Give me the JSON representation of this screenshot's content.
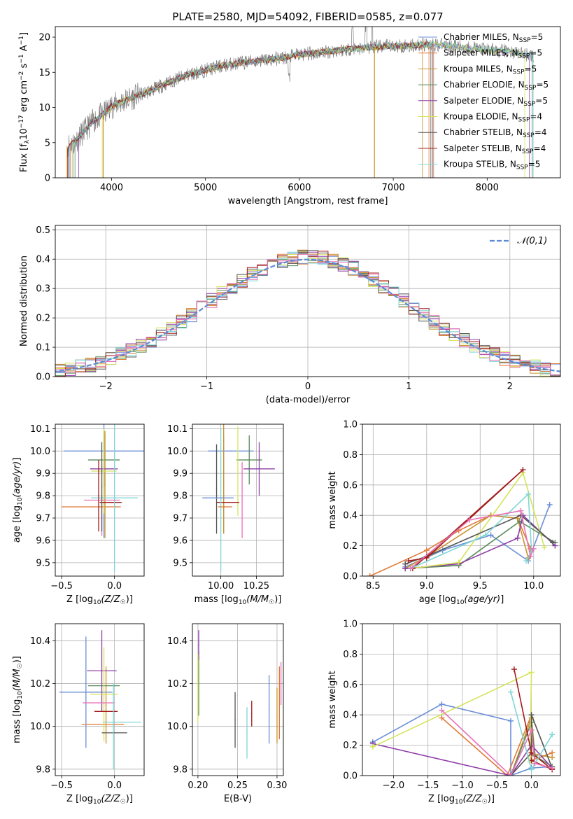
{
  "title": "PLATE=2580, MJD=54092, FIBERID=0585, z=0.077",
  "colors": {
    "Chabrier MILES": "#6a8fd6",
    "Salpeter MILES": "#e07b39",
    "Kroupa MILES": "#c9922f",
    "Chabrier ELODIE": "#5a8a58",
    "Salpeter ELODIE": "#8e3da6",
    "Kroupa ELODIE": "#d5e45a",
    "Chabrier STELIB": "#555555",
    "Salpeter STELIB": "#a31b1b",
    "Kroupa STELIB": "#7fd6d6",
    "extra pink": "#e872b8",
    "observed": "#808080",
    "normal": "#5b8ad6"
  },
  "chart_data": [
    {
      "id": "spectrum",
      "type": "line",
      "xlabel": "wavelength [Angstrom, rest frame]",
      "ylabel": "Flux [f_λ10^-17 erg cm^-2 s^-1 A^-1]",
      "xlim": [
        3400,
        8780
      ],
      "ylim": [
        0,
        21.5
      ],
      "xticks": [
        "4000",
        "5000",
        "6000",
        "7000",
        "8000"
      ],
      "yticks": [
        "0",
        "5",
        "10",
        "15",
        "20"
      ],
      "legend": [
        {
          "label": "Chabrier MILES",
          "nssp": "5"
        },
        {
          "label": "Salpeter MILES",
          "nssp": "5"
        },
        {
          "label": "Kroupa MILES",
          "nssp": "5"
        },
        {
          "label": "Chabrier ELODIE",
          "nssp": "5"
        },
        {
          "label": "Salpeter ELODIE",
          "nssp": "5"
        },
        {
          "label": "Kroupa ELODIE",
          "nssp": "4"
        },
        {
          "label": "Chabrier STELIB",
          "nssp": "4"
        },
        {
          "label": "Salpeter STELIB",
          "nssp": "4"
        },
        {
          "label": "Kroupa STELIB",
          "nssp": "5"
        }
      ],
      "legend_placement": "top-right",
      "grid": false,
      "continuum": [
        [
          3500,
          4.5
        ],
        [
          3600,
          5.0
        ],
        [
          3700,
          6.5
        ],
        [
          3800,
          8.0
        ],
        [
          3950,
          9.5
        ],
        [
          4000,
          10.2
        ],
        [
          4200,
          11.3
        ],
        [
          4400,
          12.3
        ],
        [
          4600,
          13.5
        ],
        [
          4800,
          14.6
        ],
        [
          5000,
          15.3
        ],
        [
          5200,
          16.0
        ],
        [
          5400,
          16.4
        ],
        [
          5600,
          16.7
        ],
        [
          5800,
          17.0
        ],
        [
          6000,
          17.5
        ],
        [
          6200,
          17.8
        ],
        [
          6400,
          18.1
        ],
        [
          6600,
          18.4
        ],
        [
          6800,
          18.6
        ],
        [
          7000,
          18.7
        ],
        [
          7200,
          18.8
        ],
        [
          7400,
          19.0
        ],
        [
          7600,
          18.8
        ],
        [
          7800,
          18.5
        ],
        [
          8000,
          18.2
        ],
        [
          8200,
          18.0
        ],
        [
          8400,
          17.6
        ],
        [
          8500,
          17.3
        ]
      ],
      "model_ranges": [
        [
          3550,
          7430
        ],
        [
          3560,
          7380
        ],
        [
          3590,
          7310
        ],
        [
          3610,
          8480
        ],
        [
          3650,
          8450
        ],
        [
          3900,
          8400
        ],
        [
          3540,
          7400
        ],
        [
          3530,
          7420
        ],
        [
          3580,
          8490
        ]
      ],
      "drops": [
        3520,
        3910,
        6800,
        7420
      ]
    },
    {
      "id": "residuals",
      "type": "line",
      "xlabel": "(data-model)/error",
      "ylabel": "Normed distribution",
      "xlim": [
        -2.5,
        2.5
      ],
      "ylim": [
        0,
        0.515
      ],
      "xticks": [
        "−2",
        "−1",
        "0",
        "1",
        "2"
      ],
      "yticks": [
        "0.0",
        "0.1",
        "0.2",
        "0.3",
        "0.4",
        "0.5"
      ],
      "legend": "𝒩(0,1)",
      "legend_placement": "top-right",
      "grid": true,
      "bin_width": 0.1
    },
    {
      "id": "age_vs_Z",
      "type": "scatter",
      "xlabel": "Z [log10(Z/Z☉)]",
      "ylabel": "age [log10(age/yr)]",
      "xlim": [
        -0.56,
        0.28
      ],
      "ylim": [
        9.44,
        10.12
      ],
      "xticks": [
        "−0.5",
        "0.0"
      ],
      "yticks": [
        "9.5",
        "9.6",
        "9.7",
        "9.8",
        "9.9",
        "10.0",
        "10.1"
      ],
      "grid": true,
      "points": [
        {
          "c": "Chabrier MILES",
          "x": -0.1,
          "xe": 0.38,
          "y": 10.0,
          "ye": 0.39
        },
        {
          "c": "Salpeter MILES",
          "x": -0.22,
          "xe": 0.28,
          "y": 9.75,
          "ye": 0.0
        },
        {
          "c": "Kroupa MILES",
          "x": -0.09,
          "xe": 0.0,
          "y": 9.85,
          "ye": 0.24
        },
        {
          "c": "Chabrier ELODIE",
          "x": -0.1,
          "xe": 0.15,
          "y": 9.96,
          "ye": 0.12
        },
        {
          "c": "Salpeter ELODIE",
          "x": -0.1,
          "xe": 0.13,
          "y": 9.92,
          "ye": 0.0
        },
        {
          "c": "Kroupa ELODIE",
          "x": -0.1,
          "xe": 0.12,
          "y": 9.91,
          "ye": 0.19
        },
        {
          "c": "Chabrier STELIB",
          "x": -0.03,
          "xe": 0.1,
          "y": 9.77,
          "ye": 0.0
        },
        {
          "c": "Salpeter STELIB",
          "x": -0.04,
          "xe": 0.1,
          "y": 9.77,
          "ye": 0.0
        },
        {
          "c": "Kroupa STELIB",
          "x": 0.0,
          "xe": 0.22,
          "y": 9.79,
          "ye": 0.33
        },
        {
          "c": "extra pink",
          "x": -0.12,
          "xe": 0.17,
          "y": 9.78,
          "ye": 0.16
        },
        {
          "c": "Chabrier STELIB",
          "x": -0.12,
          "xe": 0.0,
          "y": 9.84,
          "ye": 0.2
        },
        {
          "c": "Salpeter STELIB",
          "x": -0.15,
          "xe": 0.0,
          "y": 9.8,
          "ye": 0.16
        }
      ]
    },
    {
      "id": "age_vs_mass",
      "type": "scatter",
      "xlabel": "mass [log10(M/M☉)]",
      "ylabel": "",
      "xlim": [
        9.8,
        10.44
      ],
      "ylim": [
        9.44,
        10.12
      ],
      "xticks": [
        "10.00",
        "10.25"
      ],
      "yticks": [
        "9.5",
        "9.6",
        "9.7",
        "9.8",
        "9.9",
        "10.0",
        "10.1"
      ],
      "grid": true,
      "points": [
        {
          "c": "Chabrier MILES",
          "x": 10.07,
          "xe": 0.16,
          "y": 10.0,
          "ye": 0.0
        },
        {
          "c": "Salpeter MILES",
          "x": 10.02,
          "xe": 0.0,
          "y": 9.85,
          "ye": 0.22
        },
        {
          "c": "Kroupa MILES",
          "x": 10.02,
          "xe": 0.0,
          "y": 9.9,
          "ye": 0.27
        },
        {
          "c": "Chabrier ELODIE",
          "x": 10.2,
          "xe": 0.09,
          "y": 9.96,
          "ye": 0.11
        },
        {
          "c": "Salpeter ELODIE",
          "x": 10.27,
          "xe": 0.11,
          "y": 9.92,
          "ye": 0.12
        },
        {
          "c": "Kroupa ELODIE",
          "x": 10.12,
          "xe": 0.0,
          "y": 9.91,
          "ye": 0.2
        },
        {
          "c": "Chabrier STELIB",
          "x": 9.97,
          "xe": 0.0,
          "y": 9.83,
          "ye": 0.2
        },
        {
          "c": "Salpeter STELIB",
          "x": 10.05,
          "xe": 0.08,
          "y": 9.77,
          "ye": 0.0
        },
        {
          "c": "Kroupa STELIB",
          "x": 10.0,
          "xe": 0.0,
          "y": 9.78,
          "ye": 0.32
        },
        {
          "c": "extra pink",
          "x": 10.15,
          "xe": 0.0,
          "y": 9.78,
          "ye": 0.17
        },
        {
          "c": "Chabrier MILES",
          "x": 9.98,
          "xe": 0.11,
          "y": 9.79,
          "ye": 0.0
        },
        {
          "c": "Salpeter MILES",
          "x": 10.03,
          "xe": 0.05,
          "y": 9.75,
          "ye": 0.0
        }
      ]
    },
    {
      "id": "weight_vs_age",
      "type": "line",
      "xlabel": "age [log10(age/yr)]",
      "ylabel": "mass weight",
      "xlim": [
        8.4,
        10.25
      ],
      "ylim": [
        0,
        1
      ],
      "xticks": [
        "8.5",
        "9.0",
        "9.5",
        "10.0"
      ],
      "yticks": [
        "0.0",
        "0.2",
        "0.4",
        "0.6",
        "0.8",
        "1.0"
      ],
      "grid": true,
      "series": [
        {
          "c": "Chabrier MILES",
          "x": [
            8.8,
            9.15,
            9.6,
            9.95,
            10.15
          ],
          "y": [
            0.06,
            0.17,
            0.27,
            0.1,
            0.47
          ]
        },
        {
          "c": "Salpeter MILES",
          "x": [
            8.47,
            9.0,
            9.3,
            9.6,
            9.85,
            9.97
          ],
          "y": [
            0.0,
            0.17,
            0.3,
            0.4,
            0.38,
            0.18
          ]
        },
        {
          "c": "Kroupa MILES",
          "x": [
            8.8,
            9.05,
            9.6,
            9.85,
            9.95
          ],
          "y": [
            0.05,
            0.15,
            0.4,
            0.38,
            0.12
          ]
        },
        {
          "c": "Chabrier ELODIE",
          "x": [
            8.8,
            9.3,
            9.87,
            10.2
          ],
          "y": [
            0.05,
            0.07,
            0.36,
            0.22
          ]
        },
        {
          "c": "Salpeter ELODIE",
          "x": [
            8.8,
            9.3,
            9.85,
            9.9,
            10.2
          ],
          "y": [
            0.05,
            0.08,
            0.25,
            0.4,
            0.2
          ]
        },
        {
          "c": "Kroupa ELODIE",
          "x": [
            8.85,
            9.3,
            9.9,
            10.1
          ],
          "y": [
            0.05,
            0.09,
            0.68,
            0.19
          ]
        },
        {
          "c": "Chabrier STELIB",
          "x": [
            8.8,
            9.0,
            9.88,
            10.18
          ],
          "y": [
            0.08,
            0.13,
            0.4,
            0.22
          ]
        },
        {
          "c": "Salpeter STELIB",
          "x": [
            8.87,
            9.9,
            9.0,
            8.83
          ],
          "y": [
            0.05,
            0.7,
            0.12,
            0.1
          ]
        },
        {
          "c": "Kroupa STELIB",
          "x": [
            8.85,
            9.55,
            9.95,
            9.98,
            9.93
          ],
          "y": [
            0.05,
            0.27,
            0.54,
            0.16,
            0.1
          ]
        },
        {
          "c": "extra pink",
          "x": [
            8.85,
            9.4,
            9.88,
            9.97,
            10.0
          ],
          "y": [
            0.05,
            0.37,
            0.43,
            0.13,
            0.18
          ]
        }
      ]
    },
    {
      "id": "mass_vs_Z",
      "type": "scatter",
      "xlabel": "Z [log10(Z/Z☉)]",
      "ylabel": "mass [log10(M/M☉)]",
      "xlim": [
        -0.56,
        0.28
      ],
      "ylim": [
        9.77,
        10.48
      ],
      "xticks": [
        "−0.5",
        "0.0"
      ],
      "yticks": [
        "9.8",
        "10.0",
        "10.2",
        "10.4"
      ],
      "grid": true,
      "points": [
        {
          "c": "Chabrier MILES",
          "x": -0.27,
          "xe": 0.25,
          "y": 10.16,
          "ye": 0.26
        },
        {
          "c": "Salpeter MILES",
          "x": -0.11,
          "xe": 0.2,
          "y": 10.01,
          "ye": 0.0
        },
        {
          "c": "Kroupa MILES",
          "x": -0.08,
          "xe": 0.0,
          "y": 10.1,
          "ye": 0.18
        },
        {
          "c": "Chabrier ELODIE",
          "x": -0.1,
          "xe": 0.15,
          "y": 10.19,
          "ye": 0.0
        },
        {
          "c": "Salpeter ELODIE",
          "x": -0.12,
          "xe": 0.14,
          "y": 10.26,
          "ye": 0.19
        },
        {
          "c": "Kroupa ELODIE",
          "x": -0.1,
          "xe": 0.13,
          "y": 10.15,
          "ye": 0.22
        },
        {
          "c": "Chabrier STELIB",
          "x": 0.0,
          "xe": 0.12,
          "y": 9.97,
          "ye": 0.0
        },
        {
          "c": "Salpeter STELIB",
          "x": -0.08,
          "xe": 0.11,
          "y": 10.07,
          "ye": 0.0
        },
        {
          "c": "Kroupa STELIB",
          "x": 0.07,
          "xe": 0.18,
          "y": 10.02,
          "ye": 0.0
        },
        {
          "c": "extra pink",
          "x": -0.15,
          "xe": 0.15,
          "y": 10.11,
          "ye": 0.0
        },
        {
          "c": "Kroupa STELIB",
          "x": -0.01,
          "xe": 0.0,
          "y": 10.0,
          "ye": 0.2
        }
      ]
    },
    {
      "id": "mass_vs_ebv",
      "type": "scatter",
      "xlabel": "E(B-V)",
      "ylabel": "",
      "xlim": [
        0.193,
        0.308
      ],
      "ylim": [
        9.77,
        10.48
      ],
      "xticks": [
        "0.20",
        "0.25",
        "0.30"
      ],
      "yticks": [
        "9.8",
        "10.0",
        "10.2",
        "10.4"
      ],
      "grid": true,
      "points": [
        {
          "c": "Chabrier MILES",
          "x": 0.29,
          "xe": 0.0,
          "y": 10.08,
          "ye": 0.16
        },
        {
          "c": "Salpeter MILES",
          "x": 0.303,
          "xe": 0.0,
          "y": 10.11,
          "ye": 0.17
        },
        {
          "c": "Kroupa MILES",
          "x": 0.3,
          "xe": 0.0,
          "y": 10.05,
          "ye": 0.13
        },
        {
          "c": "Chabrier ELODIE",
          "x": 0.201,
          "xe": 0.0,
          "y": 10.2,
          "ye": 0.15
        },
        {
          "c": "Salpeter ELODIE",
          "x": 0.201,
          "xe": 0.0,
          "y": 10.38,
          "ye": 0.07
        },
        {
          "c": "Kroupa ELODIE",
          "x": 0.2,
          "xe": 0.0,
          "y": 10.18,
          "ye": 0.16
        },
        {
          "c": "Chabrier STELIB",
          "x": 0.247,
          "xe": 0.0,
          "y": 10.03,
          "ye": 0.13
        },
        {
          "c": "Salpeter STELIB",
          "x": 0.268,
          "xe": 0.0,
          "y": 10.06,
          "ye": 0.06
        },
        {
          "c": "Kroupa STELIB",
          "x": 0.262,
          "xe": 0.0,
          "y": 9.97,
          "ye": 0.12
        },
        {
          "c": "extra pink",
          "x": 0.305,
          "xe": 0.0,
          "y": 10.2,
          "ye": 0.1
        }
      ]
    },
    {
      "id": "weight_vs_Z",
      "type": "line",
      "xlabel": "Z [log10(Z/Z☉)]",
      "ylabel": "mass weight",
      "xlim": [
        -2.45,
        0.42
      ],
      "ylim": [
        0,
        1
      ],
      "xticks": [
        "−2.0",
        "−1.5",
        "−1.0",
        "−0.5",
        "0.0"
      ],
      "yticks": [
        "0.0",
        "0.2",
        "0.4",
        "0.6",
        "0.8",
        "1.0"
      ],
      "grid": true,
      "series": [
        {
          "c": "Chabrier MILES",
          "x": [
            -2.3,
            -1.3,
            -0.3,
            -0.3,
            0.0,
            0.3
          ],
          "y": [
            0.22,
            0.47,
            0.36,
            0.0,
            0.05,
            0.06
          ]
        },
        {
          "c": "Salpeter MILES",
          "x": [
            -1.3,
            -0.35,
            0.0,
            0.0,
            0.3
          ],
          "y": [
            0.38,
            0.0,
            0.4,
            0.1,
            0.15
          ]
        },
        {
          "c": "Kroupa MILES",
          "x": [
            -0.3,
            0.0,
            0.05,
            0.3
          ],
          "y": [
            0.0,
            0.38,
            0.14,
            0.12
          ]
        },
        {
          "c": "Chabrier ELODIE",
          "x": [
            -0.3,
            0.0,
            0.05,
            0.3
          ],
          "y": [
            0.0,
            0.35,
            0.13,
            0.06
          ]
        },
        {
          "c": "Salpeter ELODIE",
          "x": [
            -2.3,
            -0.3,
            0.0,
            0.3
          ],
          "y": [
            0.21,
            0.0,
            0.2,
            0.05
          ]
        },
        {
          "c": "Kroupa ELODIE",
          "x": [
            -2.3,
            0.0,
            -0.02
          ],
          "y": [
            0.19,
            0.68,
            0.09
          ]
        },
        {
          "c": "Chabrier STELIB",
          "x": [
            -0.3,
            0.0,
            0.0,
            0.3
          ],
          "y": [
            0.0,
            0.15,
            0.4,
            0.05
          ]
        },
        {
          "c": "Salpeter STELIB",
          "x": [
            -0.25,
            0.0,
            0.3,
            0.0
          ],
          "y": [
            0.7,
            0.15,
            0.04,
            0.1
          ]
        },
        {
          "c": "Kroupa STELIB",
          "x": [
            -0.3,
            0.0,
            0.3
          ],
          "y": [
            0.55,
            0.04,
            0.27
          ]
        },
        {
          "c": "extra pink",
          "x": [
            -1.3,
            -0.3,
            0.0,
            0.05,
            0.3
          ],
          "y": [
            0.43,
            0.0,
            0.3,
            0.08,
            0.05
          ]
        }
      ]
    }
  ]
}
